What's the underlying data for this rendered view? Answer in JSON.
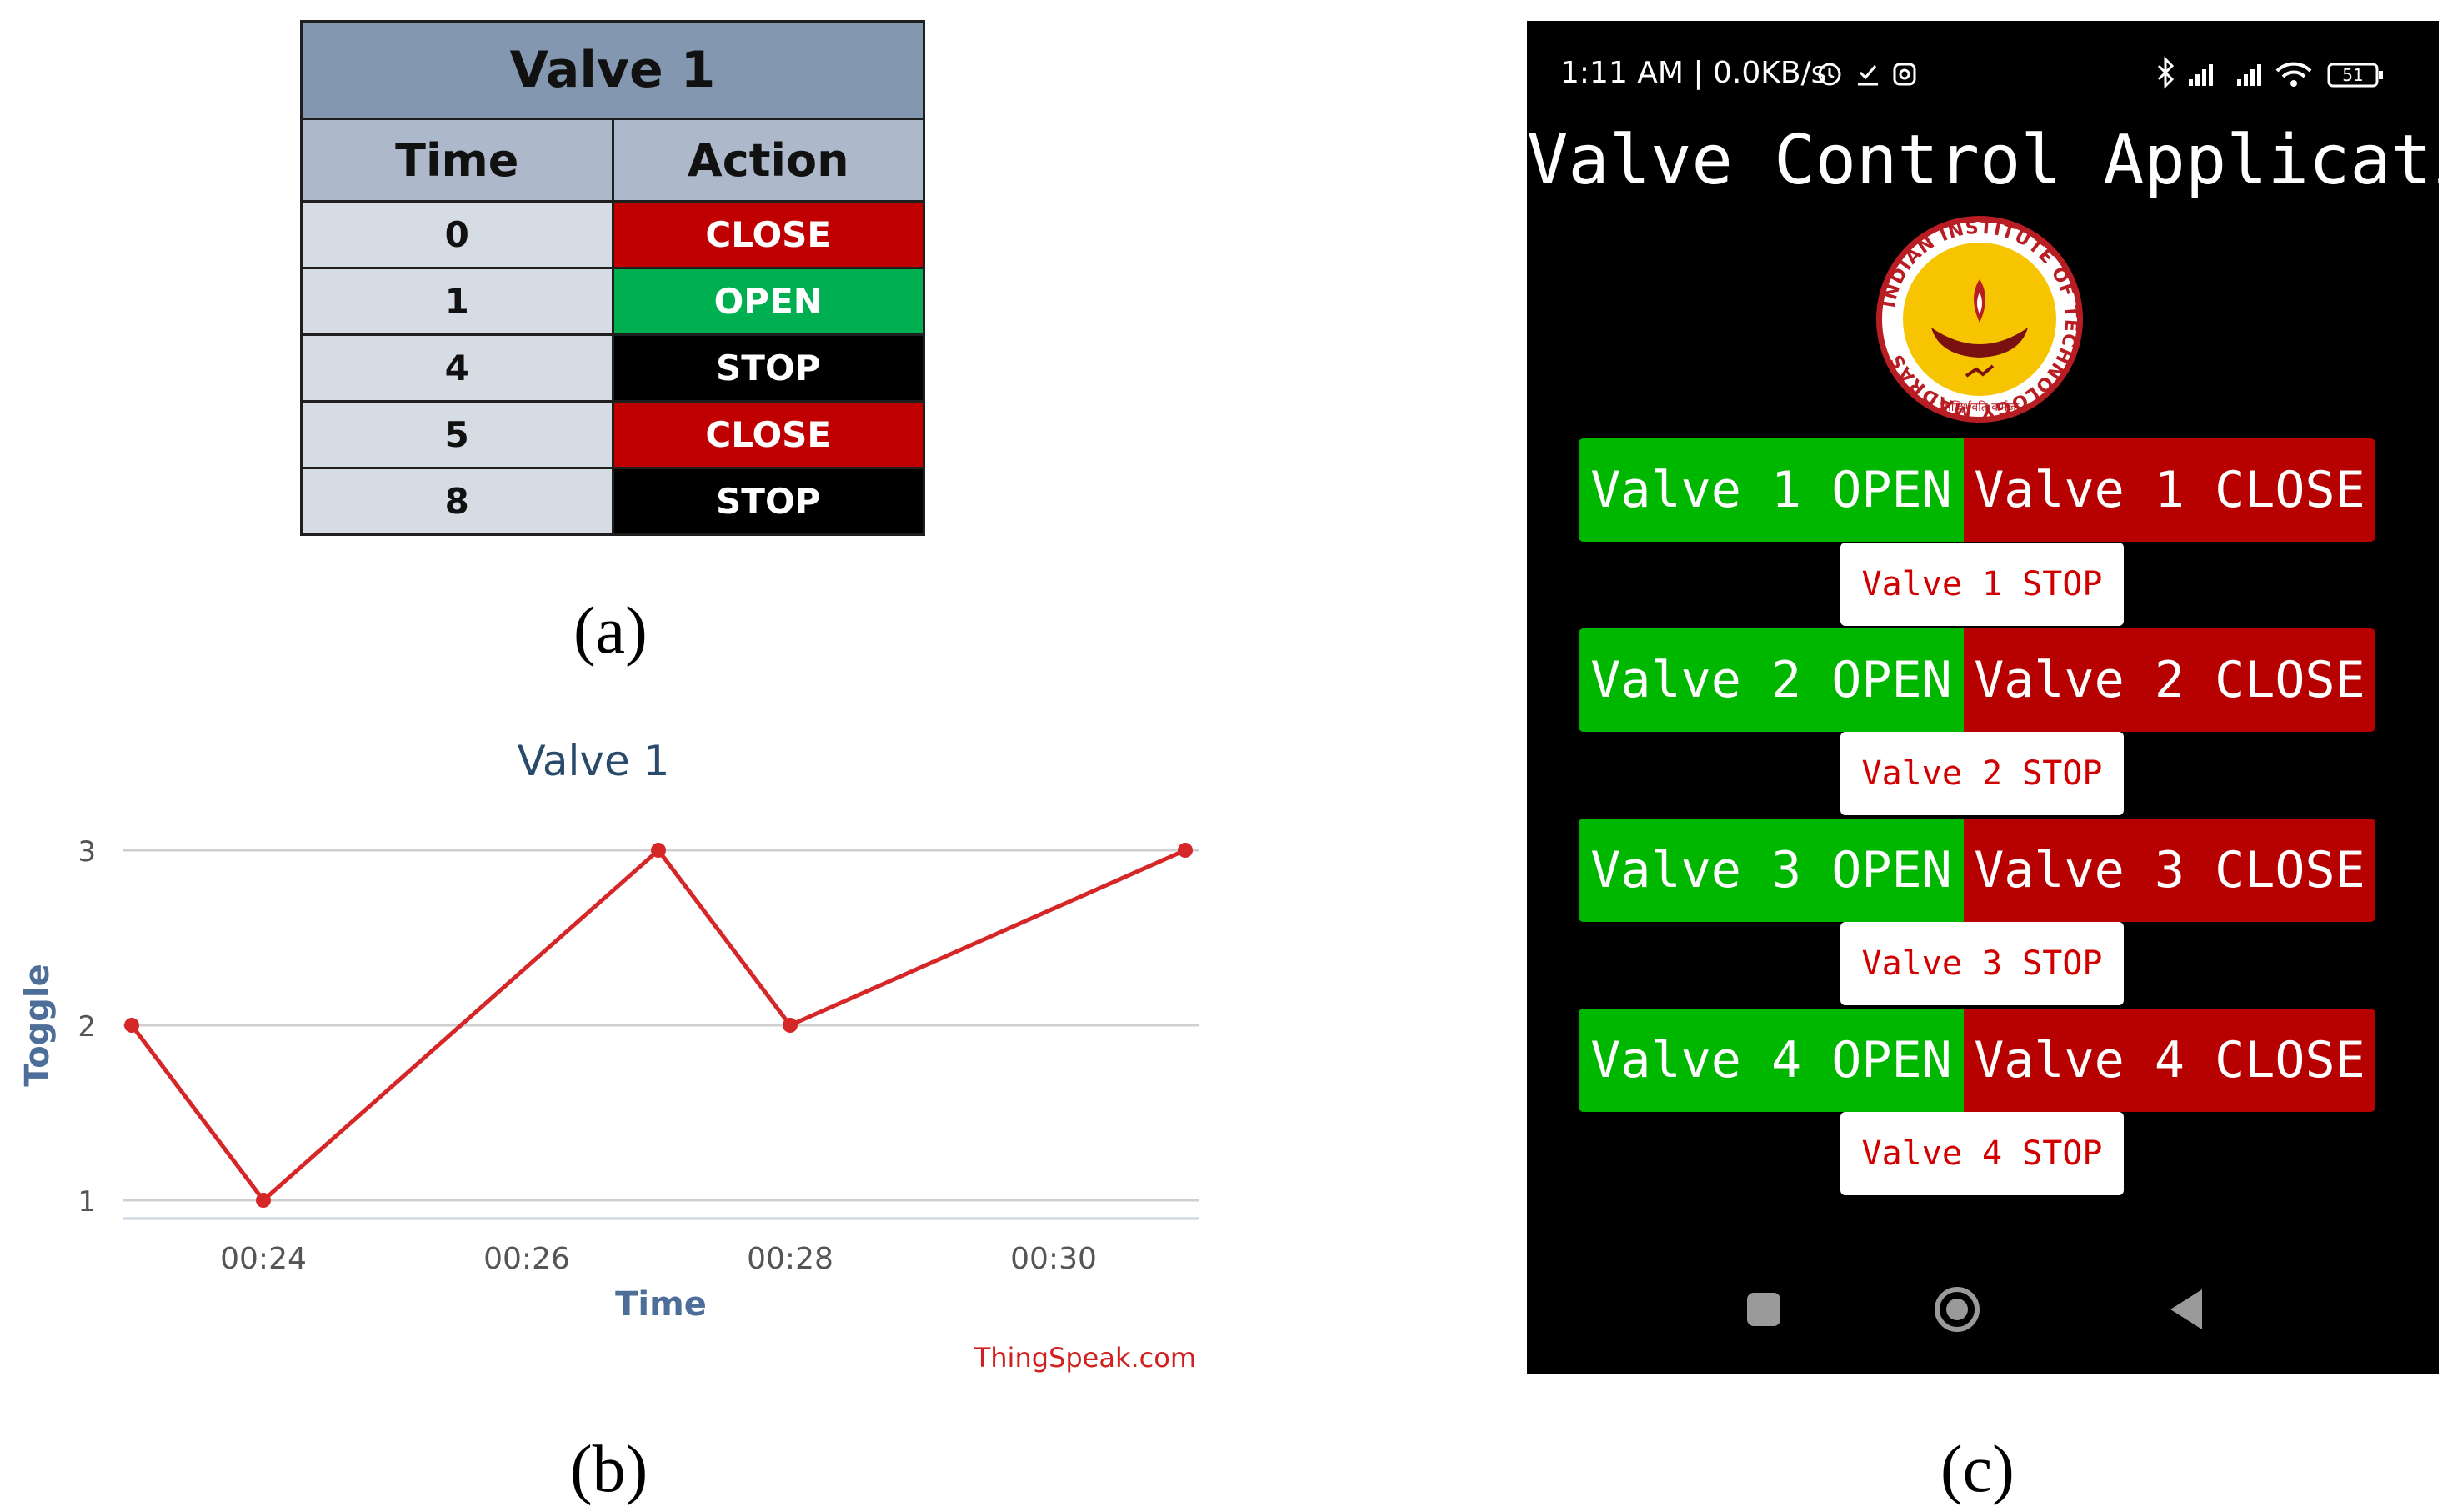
{
  "panel_a": {
    "title": "Valve 1",
    "headers": [
      "Time",
      "Action"
    ],
    "rows": [
      {
        "time": "0",
        "action": "CLOSE"
      },
      {
        "time": "1",
        "action": "OPEN"
      },
      {
        "time": "4",
        "action": "STOP"
      },
      {
        "time": "5",
        "action": "CLOSE"
      },
      {
        "time": "8",
        "action": "STOP"
      }
    ],
    "caption": "(a)"
  },
  "panel_b": {
    "caption": "(b)",
    "credit": "ThingSpeak.com"
  },
  "chart_data": {
    "type": "line",
    "title": "Valve 1",
    "xlabel": "Time",
    "ylabel": "Toggle",
    "x": [
      "00:23",
      "00:24",
      "00:27",
      "00:28",
      "00:31"
    ],
    "series": [
      {
        "values": [
          2,
          1,
          3,
          2,
          3
        ],
        "color": "#d62728"
      }
    ],
    "xticks": [
      "00:24",
      "00:26",
      "00:28",
      "00:30"
    ],
    "yticks": [
      "1",
      "2",
      "3"
    ],
    "ylim": [
      1,
      3
    ],
    "grid": true
  },
  "panel_c": {
    "caption": "(c)",
    "status_bar": {
      "left": "1:11 AM | 0.0KB/s",
      "battery": "51"
    },
    "app_title": "Valve Control Application",
    "valves": [
      {
        "open": "Valve 1 OPEN",
        "close": "Valve 1 CLOSE",
        "stop": "Valve 1 STOP"
      },
      {
        "open": "Valve 2 OPEN",
        "close": "Valve 2 CLOSE",
        "stop": "Valve 2 STOP"
      },
      {
        "open": "Valve 3 OPEN",
        "close": "Valve 3 CLOSE",
        "stop": "Valve 3 STOP"
      },
      {
        "open": "Valve 4 OPEN",
        "close": "Valve 4 CLOSE",
        "stop": "Valve 4 STOP"
      }
    ],
    "logo": {
      "ring_text": "INDIAN INSTITUTE OF TECHNOLOGY MADRAS",
      "motto": "सिद्धिर्भवति कर्मजा"
    },
    "colors": {
      "open": "#00b700",
      "close": "#b70000",
      "stop_text": "#d00000",
      "background": "#000000"
    },
    "nav_icons": [
      "recents-square-icon",
      "home-circle-icon",
      "back-triangle-icon"
    ]
  }
}
